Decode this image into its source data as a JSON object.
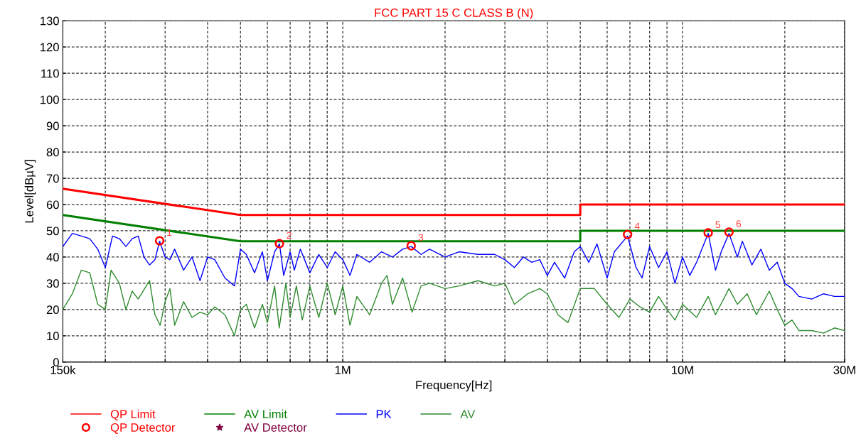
{
  "chart_data": {
    "type": "line",
    "title": "FCC PART 15 C CLASS B (N)",
    "xlabel": "Frequency[Hz]",
    "ylabel": "Level[dBµV]",
    "log": "x",
    "grid": true,
    "legend": "bottom",
    "line_style": "solid",
    "xlim": [
      150000.0,
      30000000.0
    ],
    "ylim": [
      0,
      130
    ],
    "xticks": [
      {
        "value": 150000.0,
        "label": "150k"
      },
      {
        "value": 200000.0,
        "label": null
      },
      {
        "value": 300000.0,
        "label": null
      },
      {
        "value": 400000.0,
        "label": null
      },
      {
        "value": 500000.0,
        "label": null
      },
      {
        "value": 600000.0,
        "label": null
      },
      {
        "value": 700000.0,
        "label": null
      },
      {
        "value": 800000.0,
        "label": null
      },
      {
        "value": 900000.0,
        "label": null
      },
      {
        "value": 1000000.0,
        "label": "1M"
      },
      {
        "value": 2000000.0,
        "label": null
      },
      {
        "value": 3000000.0,
        "label": null
      },
      {
        "value": 4000000.0,
        "label": null
      },
      {
        "value": 5000000.0,
        "label": null
      },
      {
        "value": 6000000.0,
        "label": null
      },
      {
        "value": 7000000.0,
        "label": null
      },
      {
        "value": 8000000.0,
        "label": null
      },
      {
        "value": 9000000.0,
        "label": null
      },
      {
        "value": 10000000.0,
        "label": "10M"
      },
      {
        "value": 20000000.0,
        "label": null
      },
      {
        "value": 30000000.0,
        "label": "30M"
      }
    ],
    "yticks": [
      0,
      10,
      20,
      30,
      40,
      50,
      60,
      70,
      80,
      90,
      100,
      110,
      120,
      130
    ],
    "series": [
      {
        "name": "QP Limit",
        "color": "#ff0000",
        "type": "line",
        "x": [
          150000.0,
          500000.0,
          5000000.0,
          5000000.0,
          30000000.0
        ],
        "values": [
          66,
          56,
          56,
          60,
          60
        ]
      },
      {
        "name": "AV Limit",
        "color": "#008000",
        "type": "line",
        "x": [
          150000.0,
          500000.0,
          5000000.0,
          5000000.0,
          30000000.0
        ],
        "values": [
          56,
          46,
          46,
          50,
          50
        ]
      },
      {
        "name": "PK",
        "color": "#0000ff",
        "x": [
          150000.0,
          160000.0,
          170000.0,
          180000.0,
          190000.0,
          200000.0,
          210000.0,
          220000.0,
          230000.0,
          240000.0,
          250000.0,
          260000.0,
          270000.0,
          280000.0,
          289000.0,
          300000.0,
          310000.0,
          320000.0,
          340000.0,
          360000.0,
          380000.0,
          400000.0,
          420000.0,
          450000.0,
          480000.0,
          500000.0,
          520000.0,
          550000.0,
          580000.0,
          600000.0,
          630000.0,
          651000.0,
          670000.0,
          700000.0,
          720000.0,
          750000.0,
          800000.0,
          850000.0,
          900000.0,
          950000.0,
          1000000.0,
          1050000.0,
          1100000.0,
          1200000.0,
          1300000.0,
          1400000.0,
          1500000.0,
          1590000.0,
          1700000.0,
          1800000.0,
          2000000.0,
          2200000.0,
          2500000.0,
          2800000.0,
          3000000.0,
          3200000.0,
          3400000.0,
          3600000.0,
          3800000.0,
          4000000.0,
          4200000.0,
          4500000.0,
          4800000.0,
          5000000.0,
          5300000.0,
          5600000.0,
          6000000.0,
          6300000.0,
          6890000.0,
          7300000.0,
          7600000.0,
          8000000.0,
          8500000.0,
          9000000.0,
          9500000.0,
          10000000.0,
          10500000.0,
          11000000.0,
          11900000.0,
          12500000.0,
          13000000.0,
          13700000.0,
          14500000.0,
          15000000.0,
          16000000.0,
          17000000.0,
          18000000.0,
          19000000.0,
          20000000.0,
          21000000.0,
          22000000.0,
          24000000.0,
          26000000.0,
          28000000.0,
          30000000.0
        ],
        "values": [
          44,
          49,
          48,
          47,
          43,
          36,
          48,
          47,
          44,
          47,
          48,
          40,
          37,
          39,
          46,
          40,
          39,
          43,
          35,
          40,
          31,
          40,
          39,
          32,
          29,
          43,
          41,
          34,
          42,
          31,
          42,
          45,
          33,
          42,
          35,
          43,
          34,
          41,
          36,
          42,
          39,
          33,
          41,
          38,
          42,
          40,
          43,
          44,
          41,
          43,
          40,
          42,
          41,
          41,
          39,
          36,
          40,
          38,
          39,
          33,
          38,
          32,
          42,
          44,
          38,
          45,
          32,
          42,
          48,
          36,
          32,
          44,
          36,
          42,
          30,
          40,
          33,
          38,
          49,
          35,
          42,
          49,
          40,
          46,
          37,
          43,
          35,
          38,
          30,
          28,
          25,
          24,
          26,
          25,
          25
        ]
      },
      {
        "name": "AV",
        "color": "#2e8b2e",
        "x": [
          150000.0,
          160000.0,
          170000.0,
          180000.0,
          190000.0,
          200000.0,
          208000.0,
          220000.0,
          230000.0,
          240000.0,
          250000.0,
          270000.0,
          280000.0,
          290000.0,
          300000.0,
          310000.0,
          320000.0,
          340000.0,
          360000.0,
          380000.0,
          400000.0,
          420000.0,
          450000.0,
          480000.0,
          500000.0,
          520000.0,
          550000.0,
          580000.0,
          600000.0,
          630000.0,
          650000.0,
          680000.0,
          700000.0,
          730000.0,
          760000.0,
          800000.0,
          850000.0,
          900000.0,
          950000.0,
          1000000.0,
          1050000.0,
          1100000.0,
          1200000.0,
          1300000.0,
          1350000.0,
          1400000.0,
          1500000.0,
          1600000.0,
          1700000.0,
          1800000.0,
          2000000.0,
          2200000.0,
          2500000.0,
          2800000.0,
          3000000.0,
          3200000.0,
          3500000.0,
          3800000.0,
          4000000.0,
          4300000.0,
          4600000.0,
          5000000.0,
          5500000.0,
          6000000.0,
          6500000.0,
          7000000.0,
          7500000.0,
          8000000.0,
          8500000.0,
          9000000.0,
          9500000.0,
          10000000.0,
          11000000.0,
          11900000.0,
          12500000.0,
          13700000.0,
          14500000.0,
          15500000.0,
          16500000.0,
          18000000.0,
          19000000.0,
          20000000.0,
          21000000.0,
          22000000.0,
          24000000.0,
          26000000.0,
          28000000.0,
          30000000.0
        ],
        "values": [
          20,
          26,
          35,
          34,
          22,
          20,
          35,
          30,
          20,
          27,
          24,
          31,
          18,
          14,
          23,
          28,
          14,
          23,
          17,
          19,
          18,
          21,
          18,
          10,
          20,
          22,
          13,
          22,
          15,
          29,
          13,
          30,
          17,
          29,
          16,
          29,
          17,
          30,
          18,
          29,
          14,
          25,
          18,
          30,
          33,
          22,
          32,
          19,
          29,
          30,
          28,
          29,
          31,
          29,
          30,
          22,
          26,
          28,
          26,
          18,
          15,
          28,
          28,
          22,
          17,
          24,
          21,
          19,
          25,
          20,
          16,
          22,
          17,
          25,
          18,
          28,
          22,
          26,
          18,
          27,
          20,
          14,
          16,
          12,
          12,
          11,
          13,
          12
        ]
      },
      {
        "name": "QP Detector",
        "color": "#ff0000",
        "type": "scatter",
        "marker": "circle",
        "x": [
          289000.0,
          651000.0,
          1590000.0,
          6890000.0,
          11900000.0,
          13700000.0
        ],
        "values": [
          46.2,
          45.1,
          44.3,
          48.6,
          49.2,
          49.5
        ]
      },
      {
        "name": "AV Detector",
        "color": "#800040",
        "type": "scatter",
        "marker": "star"
      }
    ],
    "annotations": [
      {
        "text": "1",
        "x": 289000.0,
        "y": 46.2
      },
      {
        "text": "2",
        "x": 651000.0,
        "y": 45.1
      },
      {
        "text": "3",
        "x": 1590000.0,
        "y": 44.3
      },
      {
        "text": "4",
        "x": 6890000.0,
        "y": 48.6
      },
      {
        "text": "5",
        "x": 11900000.0,
        "y": 49.2
      },
      {
        "text": "6",
        "x": 13700000.0,
        "y": 49.5
      }
    ]
  }
}
